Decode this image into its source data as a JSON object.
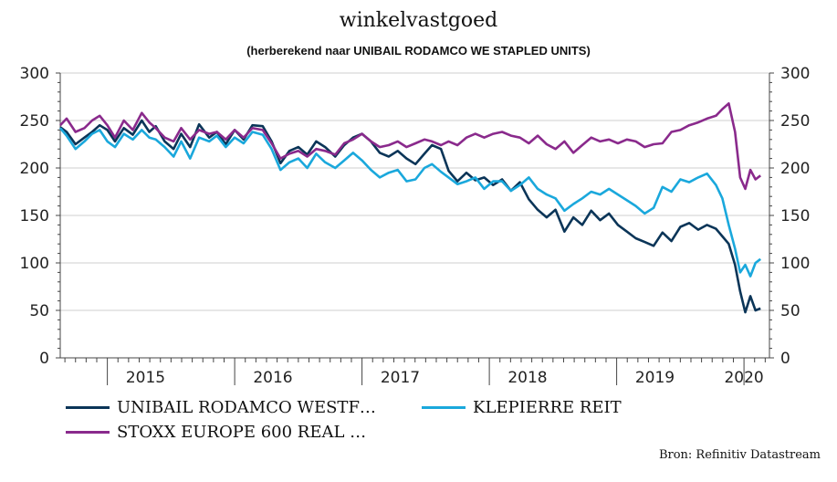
{
  "colors": {
    "unibail": "#0b3558",
    "klepierre": "#1aa8dc",
    "stoxx": "#8a2a8c",
    "grid": "#cfcfcf",
    "axis": "#444444"
  },
  "chart_data": {
    "type": "line",
    "title": "winkelvastgoed",
    "subtitle": "(herberekend naar UNIBAIL RODAMCO WE STAPLED UNITS)",
    "source": "Bron: Refinitiv Datastream",
    "ylim": [
      0,
      300
    ],
    "xlim": [
      2014.63,
      2020.2
    ],
    "yticks": [
      "0",
      "50",
      "100",
      "150",
      "200",
      "250",
      "300"
    ],
    "xlabels": [
      {
        "label": "2015",
        "pos": 2015.3
      },
      {
        "label": "2016",
        "pos": 2016.3
      },
      {
        "label": "2017",
        "pos": 2017.3
      },
      {
        "label": "2018",
        "pos": 2018.3
      },
      {
        "label": "2019",
        "pos": 2019.3
      },
      {
        "label": "2020",
        "pos": 2020.0
      }
    ],
    "grid": true,
    "legend_position": "bottom",
    "series": [
      {
        "name": "UNIBAIL RODAMCO WESTF…",
        "color_key": "unibail",
        "x": [
          2014.63,
          2014.68,
          2014.75,
          2014.82,
          2014.88,
          2014.94,
          2015.0,
          2015.06,
          2015.13,
          2015.2,
          2015.27,
          2015.33,
          2015.38,
          2015.45,
          2015.52,
          2015.58,
          2015.65,
          2015.72,
          2015.8,
          2015.86,
          2015.93,
          2016.0,
          2016.07,
          2016.14,
          2016.22,
          2016.29,
          2016.36,
          2016.43,
          2016.5,
          2016.57,
          2016.64,
          2016.71,
          2016.79,
          2016.86,
          2016.93,
          2017.0,
          2017.07,
          2017.14,
          2017.21,
          2017.28,
          2017.35,
          2017.42,
          2017.49,
          2017.55,
          2017.62,
          2017.68,
          2017.75,
          2017.82,
          2017.89,
          2017.96,
          2018.03,
          2018.1,
          2018.17,
          2018.24,
          2018.31,
          2018.38,
          2018.45,
          2018.52,
          2018.59,
          2018.66,
          2018.73,
          2018.8,
          2018.87,
          2018.94,
          2019.01,
          2019.08,
          2019.15,
          2019.22,
          2019.29,
          2019.36,
          2019.43,
          2019.5,
          2019.57,
          2019.64,
          2019.71,
          2019.78,
          2019.83,
          2019.88,
          2019.93,
          2019.97,
          2020.01,
          2020.05,
          2020.09,
          2020.13
        ],
        "values": [
          243,
          238,
          225,
          232,
          238,
          245,
          240,
          228,
          242,
          235,
          250,
          238,
          244,
          228,
          220,
          236,
          222,
          246,
          232,
          238,
          225,
          240,
          230,
          245,
          244,
          228,
          205,
          218,
          222,
          214,
          228,
          222,
          212,
          224,
          232,
          236,
          228,
          216,
          212,
          218,
          210,
          204,
          215,
          224,
          220,
          197,
          186,
          195,
          187,
          190,
          182,
          188,
          176,
          185,
          167,
          156,
          148,
          156,
          133,
          148,
          140,
          155,
          145,
          152,
          140,
          133,
          126,
          122,
          118,
          132,
          123,
          138,
          142,
          135,
          140,
          136,
          128,
          120,
          98,
          70,
          48,
          65,
          50,
          52
        ]
      },
      {
        "name": "KLEPIERRE REIT",
        "color_key": "klepierre",
        "x": [
          2014.63,
          2014.68,
          2014.75,
          2014.82,
          2014.88,
          2014.94,
          2015.0,
          2015.06,
          2015.13,
          2015.2,
          2015.27,
          2015.33,
          2015.38,
          2015.45,
          2015.52,
          2015.58,
          2015.65,
          2015.72,
          2015.8,
          2015.86,
          2015.93,
          2016.0,
          2016.07,
          2016.14,
          2016.22,
          2016.29,
          2016.36,
          2016.43,
          2016.5,
          2016.57,
          2016.64,
          2016.71,
          2016.79,
          2016.86,
          2016.93,
          2017.0,
          2017.07,
          2017.14,
          2017.21,
          2017.28,
          2017.35,
          2017.42,
          2017.49,
          2017.55,
          2017.62,
          2017.68,
          2017.75,
          2017.82,
          2017.89,
          2017.96,
          2018.03,
          2018.1,
          2018.17,
          2018.24,
          2018.31,
          2018.38,
          2018.45,
          2018.52,
          2018.59,
          2018.66,
          2018.73,
          2018.8,
          2018.87,
          2018.94,
          2019.01,
          2019.08,
          2019.15,
          2019.22,
          2019.29,
          2019.36,
          2019.43,
          2019.5,
          2019.57,
          2019.64,
          2019.71,
          2019.78,
          2019.83,
          2019.88,
          2019.93,
          2019.97,
          2020.01,
          2020.05,
          2020.09,
          2020.13
        ],
        "values": [
          242,
          234,
          220,
          228,
          236,
          240,
          228,
          222,
          236,
          230,
          240,
          232,
          230,
          222,
          212,
          228,
          210,
          232,
          228,
          234,
          222,
          232,
          226,
          238,
          235,
          220,
          198,
          206,
          210,
          200,
          215,
          206,
          200,
          208,
          216,
          208,
          198,
          190,
          195,
          198,
          186,
          188,
          200,
          204,
          196,
          190,
          183,
          186,
          190,
          178,
          186,
          186,
          176,
          182,
          190,
          178,
          172,
          168,
          155,
          162,
          168,
          175,
          172,
          178,
          172,
          166,
          160,
          152,
          158,
          180,
          175,
          188,
          185,
          190,
          194,
          182,
          168,
          140,
          115,
          90,
          98,
          86,
          100,
          104
        ]
      },
      {
        "name": "STOXX EUROPE 600 REAL …",
        "color_key": "stoxx",
        "x": [
          2014.63,
          2014.68,
          2014.75,
          2014.82,
          2014.88,
          2014.94,
          2015.0,
          2015.06,
          2015.13,
          2015.2,
          2015.27,
          2015.33,
          2015.38,
          2015.45,
          2015.52,
          2015.58,
          2015.65,
          2015.72,
          2015.8,
          2015.86,
          2015.93,
          2016.0,
          2016.07,
          2016.14,
          2016.22,
          2016.29,
          2016.36,
          2016.43,
          2016.5,
          2016.57,
          2016.64,
          2016.71,
          2016.79,
          2016.86,
          2016.93,
          2017.0,
          2017.07,
          2017.14,
          2017.21,
          2017.28,
          2017.35,
          2017.42,
          2017.49,
          2017.55,
          2017.62,
          2017.68,
          2017.75,
          2017.82,
          2017.89,
          2017.96,
          2018.03,
          2018.1,
          2018.17,
          2018.24,
          2018.31,
          2018.38,
          2018.45,
          2018.52,
          2018.59,
          2018.66,
          2018.73,
          2018.8,
          2018.87,
          2018.94,
          2019.01,
          2019.08,
          2019.15,
          2019.22,
          2019.29,
          2019.36,
          2019.43,
          2019.5,
          2019.57,
          2019.64,
          2019.71,
          2019.78,
          2019.83,
          2019.88,
          2019.93,
          2019.97,
          2020.01,
          2020.05,
          2020.09,
          2020.13
        ],
        "values": [
          245,
          252,
          238,
          242,
          250,
          255,
          245,
          232,
          250,
          240,
          258,
          248,
          242,
          232,
          228,
          242,
          230,
          240,
          236,
          238,
          230,
          240,
          232,
          242,
          240,
          226,
          210,
          215,
          218,
          212,
          220,
          218,
          214,
          226,
          230,
          236,
          228,
          222,
          224,
          228,
          222,
          226,
          230,
          228,
          224,
          228,
          224,
          232,
          236,
          232,
          236,
          238,
          234,
          232,
          226,
          234,
          225,
          220,
          228,
          216,
          224,
          232,
          228,
          230,
          226,
          230,
          228,
          222,
          225,
          226,
          238,
          240,
          245,
          248,
          252,
          255,
          262,
          268,
          238,
          190,
          178,
          198,
          188,
          192
        ]
      }
    ]
  }
}
